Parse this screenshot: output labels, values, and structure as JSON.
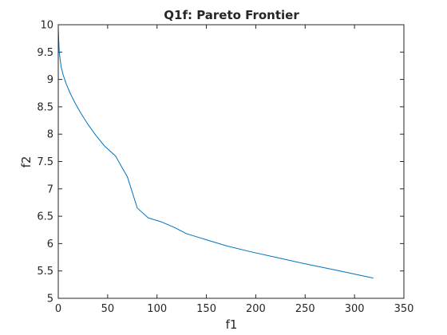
{
  "chart_data": {
    "type": "line",
    "title": "Q1f: Pareto Frontier",
    "xlabel": "f1",
    "ylabel": "f2",
    "xlim": [
      0,
      350
    ],
    "ylim": [
      5,
      10
    ],
    "xticks": [
      0,
      50,
      100,
      150,
      200,
      250,
      300,
      350
    ],
    "yticks": [
      5,
      5.5,
      6,
      6.5,
      7,
      7.5,
      8,
      8.5,
      9,
      9.5,
      10
    ],
    "grid": false,
    "series": [
      {
        "color": "#0072bd",
        "x": [
          0,
          0.5,
          1,
          2,
          3,
          5,
          8,
          12,
          17,
          23,
          30,
          38,
          47,
          58,
          70,
          80,
          91,
          104,
          117,
          130,
          150,
          170,
          195,
          220,
          250,
          280,
          319
        ],
        "y": [
          9.95,
          9.7,
          9.5,
          9.35,
          9.22,
          9.08,
          8.92,
          8.75,
          8.57,
          8.38,
          8.18,
          7.98,
          7.78,
          7.6,
          7.22,
          6.65,
          6.47,
          6.4,
          6.3,
          6.18,
          6.07,
          5.96,
          5.85,
          5.75,
          5.63,
          5.52,
          5.37
        ]
      }
    ]
  }
}
